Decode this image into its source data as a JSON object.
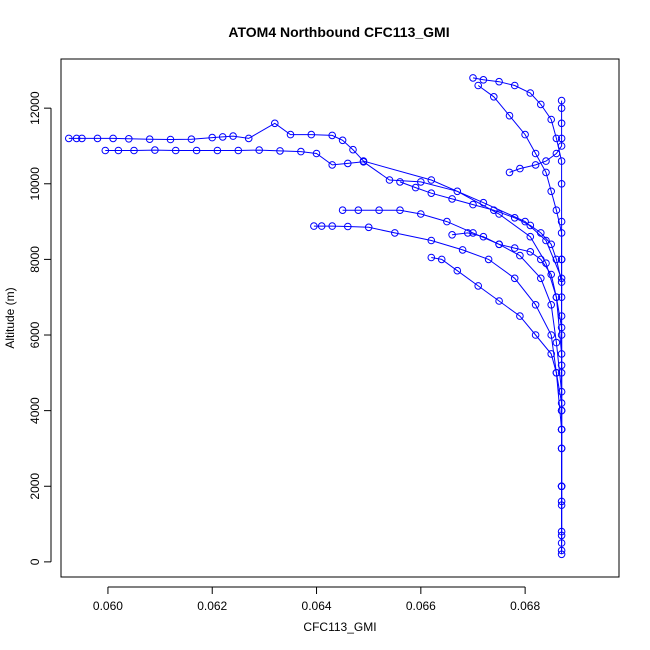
{
  "chart_data": {
    "type": "scatter",
    "title": "ATOM4 Northbound CFC113_GMI",
    "xlabel": "CFC113_GMI",
    "ylabel": "Altitude (m)",
    "xlim": [
      0.0591,
      0.0698
    ],
    "ylim": [
      -400,
      13300
    ],
    "x_ticks": [
      {
        "value": 0.06,
        "label": "0.060"
      },
      {
        "value": 0.062,
        "label": "0.062"
      },
      {
        "value": 0.064,
        "label": "0.064"
      },
      {
        "value": 0.066,
        "label": "0.066"
      },
      {
        "value": 0.068,
        "label": "0.068"
      }
    ],
    "y_ticks": [
      {
        "value": 0,
        "label": "0"
      },
      {
        "value": 2000,
        "label": "2000"
      },
      {
        "value": 4000,
        "label": "4000"
      },
      {
        "value": 6000,
        "label": "6000"
      },
      {
        "value": 8000,
        "label": "8000"
      },
      {
        "value": 10000,
        "label": "10000"
      },
      {
        "value": 12000,
        "label": "12000"
      }
    ],
    "grid": false,
    "series_color": "#0000ff",
    "marker": "open-circle",
    "connect_points": true,
    "series": [
      {
        "points": [
          [
            0.05925,
            11200
          ],
          [
            0.0594,
            11200
          ],
          [
            0.0595,
            11200
          ],
          [
            0.0598,
            11200
          ],
          [
            0.0601,
            11200
          ],
          [
            0.0604,
            11190
          ],
          [
            0.0608,
            11180
          ],
          [
            0.0612,
            11170
          ],
          [
            0.0616,
            11180
          ],
          [
            0.062,
            11220
          ],
          [
            0.0622,
            11240
          ],
          [
            0.0624,
            11260
          ],
          [
            0.0627,
            11200
          ],
          [
            0.0632,
            11600
          ],
          [
            0.0635,
            11300
          ],
          [
            0.0639,
            11300
          ],
          [
            0.0643,
            11280
          ],
          [
            0.0645,
            11150
          ],
          [
            0.0647,
            10900
          ],
          [
            0.0649,
            10600
          ],
          [
            0.0662,
            10100
          ],
          [
            0.0672,
            9500
          ],
          [
            0.068,
            9000
          ],
          [
            0.0684,
            8500
          ],
          [
            0.0687,
            7500
          ],
          [
            0.0687,
            6000
          ],
          [
            0.0687,
            4000
          ],
          [
            0.0687,
            2000
          ],
          [
            0.0687,
            800
          ],
          [
            0.0687,
            200
          ]
        ]
      },
      {
        "points": [
          [
            0.05995,
            10880
          ],
          [
            0.0602,
            10880
          ],
          [
            0.0605,
            10880
          ],
          [
            0.0609,
            10890
          ],
          [
            0.0613,
            10880
          ],
          [
            0.0617,
            10880
          ],
          [
            0.0621,
            10880
          ],
          [
            0.0625,
            10880
          ],
          [
            0.0629,
            10890
          ],
          [
            0.0633,
            10870
          ],
          [
            0.0637,
            10850
          ],
          [
            0.064,
            10800
          ],
          [
            0.0643,
            10500
          ],
          [
            0.0646,
            10540
          ],
          [
            0.0649,
            10580
          ],
          [
            0.0654,
            10100
          ],
          [
            0.066,
            10050
          ],
          [
            0.0667,
            9800
          ],
          [
            0.0675,
            9200
          ],
          [
            0.0681,
            8600
          ],
          [
            0.0684,
            7900
          ],
          [
            0.0686,
            7000
          ],
          [
            0.0687,
            5500
          ],
          [
            0.0687,
            3500
          ],
          [
            0.0687,
            1500
          ],
          [
            0.0687,
            300
          ]
        ]
      },
      {
        "points": [
          [
            0.06395,
            8880
          ],
          [
            0.0641,
            8880
          ],
          [
            0.0643,
            8880
          ],
          [
            0.0646,
            8870
          ],
          [
            0.065,
            8850
          ],
          [
            0.0655,
            8700
          ],
          [
            0.0662,
            8500
          ],
          [
            0.0668,
            8250
          ],
          [
            0.0673,
            8000
          ],
          [
            0.0678,
            7500
          ],
          [
            0.0682,
            6800
          ],
          [
            0.0685,
            6000
          ],
          [
            0.0686,
            5000
          ],
          [
            0.0687,
            3500
          ],
          [
            0.0687,
            2000
          ],
          [
            0.0687,
            700
          ]
        ]
      },
      {
        "points": [
          [
            0.0645,
            9300
          ],
          [
            0.0648,
            9300
          ],
          [
            0.0652,
            9300
          ],
          [
            0.0656,
            9300
          ],
          [
            0.066,
            9200
          ],
          [
            0.0665,
            9000
          ],
          [
            0.067,
            8700
          ],
          [
            0.0675,
            8400
          ],
          [
            0.0679,
            8100
          ],
          [
            0.0683,
            7500
          ],
          [
            0.0685,
            6800
          ],
          [
            0.0686,
            5800
          ],
          [
            0.0687,
            4500
          ],
          [
            0.0687,
            3000
          ],
          [
            0.0687,
            1600
          ]
        ]
      },
      {
        "points": [
          [
            0.0662,
            8050
          ],
          [
            0.0664,
            8000
          ],
          [
            0.0667,
            7700
          ],
          [
            0.0671,
            7300
          ],
          [
            0.0675,
            6900
          ],
          [
            0.0679,
            6500
          ],
          [
            0.0682,
            6000
          ],
          [
            0.0685,
            5500
          ],
          [
            0.0686,
            5000
          ],
          [
            0.0687,
            4200
          ],
          [
            0.0687,
            3000
          ]
        ]
      },
      {
        "points": [
          [
            0.067,
            12800
          ],
          [
            0.0672,
            12750
          ],
          [
            0.0675,
            12700
          ],
          [
            0.0678,
            12600
          ],
          [
            0.0681,
            12400
          ],
          [
            0.0683,
            12100
          ],
          [
            0.0685,
            11700
          ],
          [
            0.0686,
            11200
          ],
          [
            0.0687,
            10600
          ],
          [
            0.0687,
            10000
          ],
          [
            0.0687,
            9000
          ],
          [
            0.0687,
            8000
          ],
          [
            0.0687,
            6500
          ],
          [
            0.0687,
            5000
          ],
          [
            0.0687,
            3500
          ],
          [
            0.0687,
            2000
          ],
          [
            0.0687,
            500
          ]
        ]
      },
      {
        "points": [
          [
            0.0671,
            12600
          ],
          [
            0.0674,
            12300
          ],
          [
            0.0677,
            11800
          ],
          [
            0.068,
            11300
          ],
          [
            0.0682,
            10800
          ],
          [
            0.0684,
            10300
          ],
          [
            0.0685,
            9800
          ],
          [
            0.0686,
            9300
          ],
          [
            0.0687,
            8700
          ],
          [
            0.0687,
            8000
          ],
          [
            0.0687,
            7000
          ]
        ]
      },
      {
        "points": [
          [
            0.0677,
            10300
          ],
          [
            0.0679,
            10400
          ],
          [
            0.0682,
            10500
          ],
          [
            0.0684,
            10600
          ],
          [
            0.0686,
            10800
          ],
          [
            0.0687,
            11000
          ],
          [
            0.0687,
            11200
          ],
          [
            0.0687,
            11600
          ],
          [
            0.0687,
            12000
          ],
          [
            0.0687,
            12200
          ]
        ]
      },
      {
        "points": [
          [
            0.0666,
            8650
          ],
          [
            0.0669,
            8700
          ],
          [
            0.0672,
            8600
          ],
          [
            0.0675,
            8400
          ],
          [
            0.0678,
            8300
          ],
          [
            0.0681,
            8200
          ],
          [
            0.0683,
            8000
          ],
          [
            0.0685,
            7600
          ],
          [
            0.0686,
            7000
          ],
          [
            0.0687,
            6200
          ],
          [
            0.0687,
            5200
          ],
          [
            0.0687,
            4000
          ]
        ]
      },
      {
        "points": [
          [
            0.0656,
            10050
          ],
          [
            0.0659,
            9900
          ],
          [
            0.0662,
            9750
          ],
          [
            0.0666,
            9600
          ],
          [
            0.067,
            9450
          ],
          [
            0.0674,
            9300
          ],
          [
            0.0678,
            9100
          ],
          [
            0.0681,
            8900
          ],
          [
            0.0683,
            8700
          ],
          [
            0.0685,
            8400
          ],
          [
            0.0686,
            8000
          ],
          [
            0.0687,
            7400
          ]
        ]
      }
    ]
  }
}
